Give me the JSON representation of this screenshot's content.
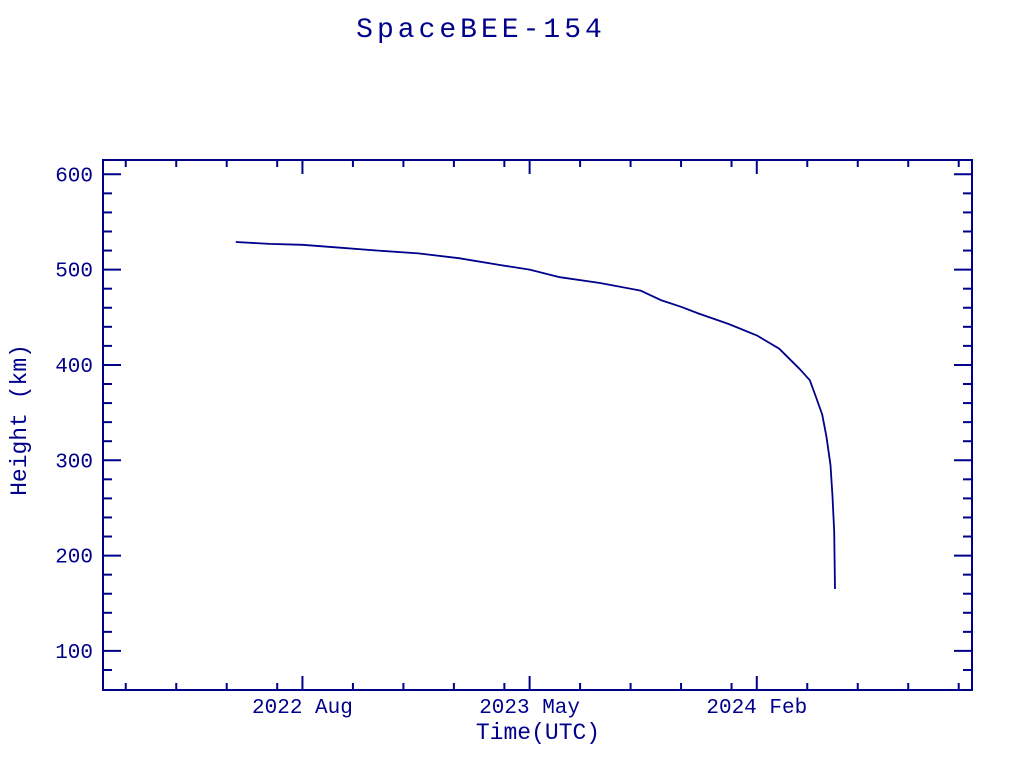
{
  "page": {
    "background_color": "#ffffff",
    "accent_color": "#00008b"
  },
  "chart_data": {
    "type": "line",
    "title": "SpaceBEE-154",
    "xlabel": "Time(UTC)",
    "ylabel": "Height (km)",
    "line_color": "#00008b",
    "axis_color": "#00008b",
    "legend": "none",
    "grid": false,
    "x_unit": "UTC calendar date",
    "y_unit": "km",
    "x_range": [
      "2021-12-04",
      "2024-10-17"
    ],
    "y_range": [
      59,
      615
    ],
    "x_major_ticks": [
      {
        "label": "2022 Aug",
        "date": "2022-08-01"
      },
      {
        "label": "2023 May",
        "date": "2023-05-01"
      },
      {
        "label": "2024 Feb",
        "date": "2024-02-01"
      }
    ],
    "x_minor_tick_dates": [
      "2022-01-01",
      "2022-03-01",
      "2022-05-01",
      "2022-07-01",
      "2022-10-01",
      "2022-12-01",
      "2023-02-01",
      "2023-04-01",
      "2023-07-01",
      "2023-09-01",
      "2023-11-01",
      "2024-01-01",
      "2024-04-01",
      "2024-06-01",
      "2024-08-01",
      "2024-10-01"
    ],
    "y_major_ticks": [
      100,
      200,
      300,
      400,
      500,
      600
    ],
    "y_minor_step": 20,
    "points": [
      [
        "2022-05-12",
        529
      ],
      [
        "2022-06-22",
        527
      ],
      [
        "2022-08-01",
        526
      ],
      [
        "2022-09-16",
        523
      ],
      [
        "2022-11-01",
        520
      ],
      [
        "2022-12-19",
        517
      ],
      [
        "2023-02-07",
        512
      ],
      [
        "2023-03-25",
        505
      ],
      [
        "2023-05-01",
        500
      ],
      [
        "2023-06-07",
        492
      ],
      [
        "2023-07-25",
        486
      ],
      [
        "2023-09-13",
        478
      ],
      [
        "2023-10-07",
        468
      ],
      [
        "2023-11-01",
        461
      ],
      [
        "2023-11-22",
        454
      ],
      [
        "2023-12-28",
        443
      ],
      [
        "2024-02-01",
        431
      ],
      [
        "2024-02-28",
        417
      ],
      [
        "2024-03-22",
        396
      ],
      [
        "2024-04-04",
        384
      ],
      [
        "2024-04-10",
        370
      ],
      [
        "2024-04-19",
        348
      ],
      [
        "2024-04-24",
        325
      ],
      [
        "2024-04-29",
        295
      ],
      [
        "2024-05-01",
        262
      ],
      [
        "2024-05-03",
        225
      ],
      [
        "2024-05-04",
        165
      ]
    ]
  }
}
